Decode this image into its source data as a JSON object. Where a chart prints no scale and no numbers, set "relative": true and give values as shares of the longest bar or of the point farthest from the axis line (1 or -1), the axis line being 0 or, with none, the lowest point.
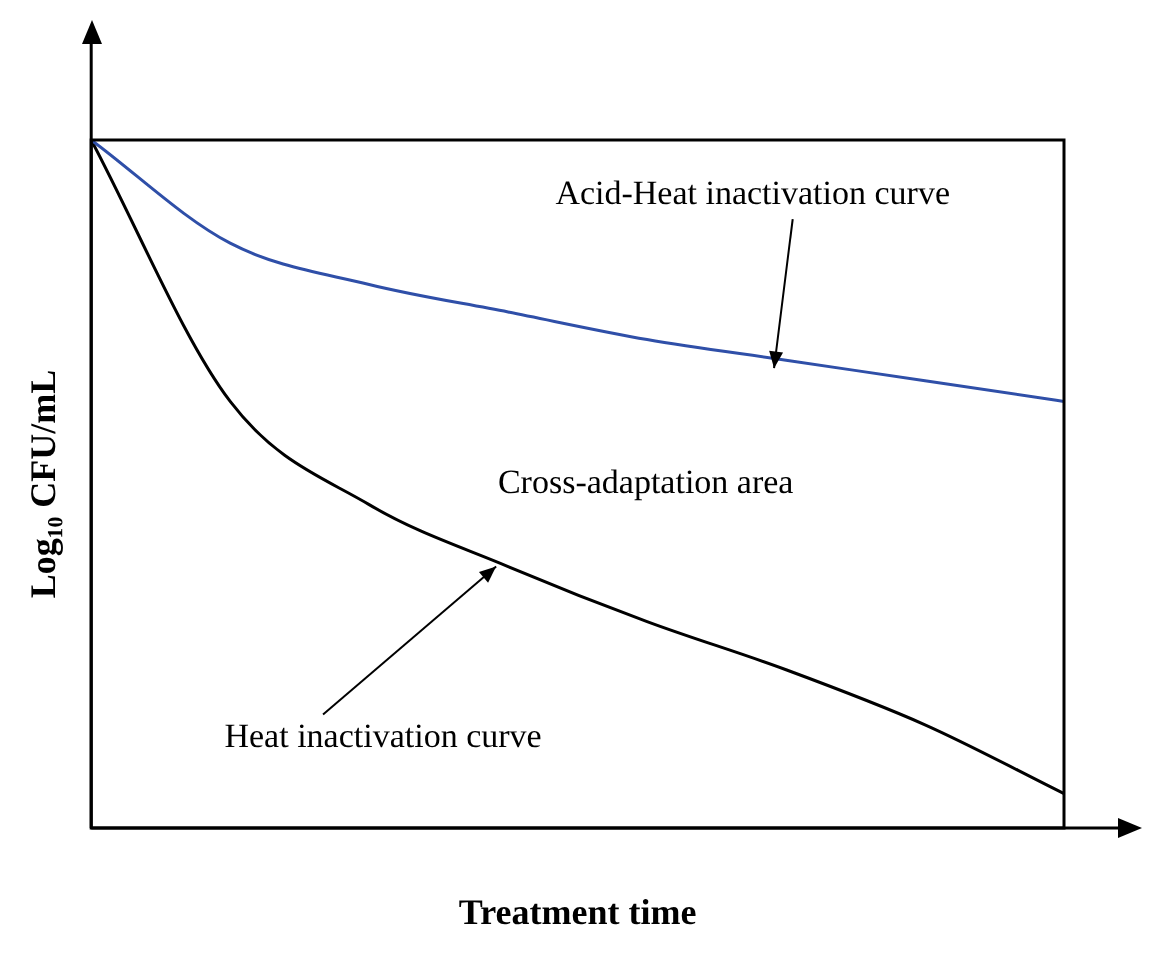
{
  "chart_data": {
    "type": "line",
    "relative": true,
    "xlabel": "Treatment time",
    "ylabel": "Log₁₀ CFU/mL",
    "categories": [
      null,
      null,
      null,
      null,
      null,
      null,
      null,
      null
    ],
    "series": [
      {
        "color": "#2f4fa8",
        "values": [
          1,
          0.85,
          0.79,
          0.75,
          0.71,
          0.68,
          0.65,
          0.62
        ]
      },
      {
        "color": "#000000",
        "values": [
          1,
          0.62,
          0.47,
          0.38,
          0.3,
          0.23,
          0.15,
          0.05
        ]
      }
    ],
    "annotations": [
      "Acid-Heat inactivation curve",
      "Cross-adaptation area",
      "Heat inactivation curve"
    ],
    "marker": "none",
    "line_style": "solid",
    "grid": false,
    "legend": false
  }
}
